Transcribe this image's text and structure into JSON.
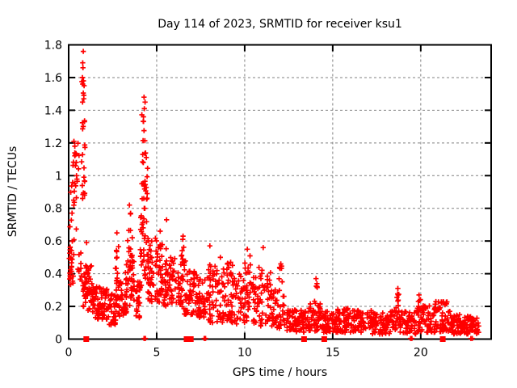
{
  "title": "Day 114 of 2023, SRMTID for receiver ksu1",
  "x_axis": {
    "label": "GPS time / hours",
    "min": 0,
    "max": 24,
    "ticks": [
      {
        "value": 0,
        "label": "0"
      },
      {
        "value": 5,
        "label": "5"
      },
      {
        "value": 10,
        "label": "10"
      },
      {
        "value": 15,
        "label": "15"
      },
      {
        "value": 20,
        "label": "20"
      }
    ],
    "gridlines": [
      5,
      10,
      15,
      20
    ]
  },
  "y_axis": {
    "label": "SRMTID / TECUs",
    "min": 0,
    "max": 1.8,
    "ticks": [
      {
        "value": 0,
        "label": "0"
      },
      {
        "value": 0.2,
        "label": "0.2"
      },
      {
        "value": 0.4,
        "label": "0.4"
      },
      {
        "value": 0.6,
        "label": "0.6"
      },
      {
        "value": 0.8,
        "label": "0.8"
      },
      {
        "value": 1,
        "label": "1"
      },
      {
        "value": 1.2,
        "label": "1.2"
      },
      {
        "value": 1.4,
        "label": "1.4"
      },
      {
        "value": 1.6,
        "label": "1.6"
      },
      {
        "value": 1.8,
        "label": "1.8"
      }
    ],
    "gridlines": [
      0.2,
      0.4,
      0.6,
      0.8,
      1.0,
      1.2,
      1.4,
      1.6
    ]
  },
  "colors": {
    "marker": "#ff0000",
    "grid": "#808080",
    "axis": "#000000",
    "text": "#000000",
    "background": "#ffffff"
  },
  "chart_data": {
    "type": "scatter",
    "title": "Day 114 of 2023, SRMTID for receiver ksu1",
    "xlabel": "GPS time / hours",
    "ylabel": "SRMTID / TECUs",
    "xlim": [
      0,
      24
    ],
    "ylim": [
      0,
      1.8
    ],
    "grid": "dashed",
    "legend": "none",
    "marker": "plus",
    "marker_color": "#ff0000",
    "seed": 1337,
    "bands_format": "[x_start_hours, x_end_hours, y_min_TECUs, y_max_TECUs, point_count]",
    "bands": [
      [
        0.02,
        0.35,
        0.33,
        0.62,
        30
      ],
      [
        0.05,
        0.5,
        0.62,
        1.0,
        12
      ],
      [
        0.2,
        0.6,
        0.95,
        1.22,
        16
      ],
      [
        0.45,
        0.8,
        0.33,
        0.55,
        10
      ],
      [
        0.72,
        0.95,
        0.85,
        1.25,
        14
      ],
      [
        0.74,
        0.92,
        1.28,
        1.62,
        8
      ],
      [
        0.8,
        1.35,
        0.17,
        0.45,
        55
      ],
      [
        1.35,
        2.3,
        0.12,
        0.32,
        75
      ],
      [
        2.3,
        2.7,
        0.08,
        0.28,
        35
      ],
      [
        2.62,
        2.85,
        0.3,
        0.62,
        9
      ],
      [
        2.7,
        3.3,
        0.14,
        0.38,
        45
      ],
      [
        3.2,
        3.75,
        0.2,
        0.52,
        40
      ],
      [
        3.35,
        3.65,
        0.5,
        0.78,
        10
      ],
      [
        3.75,
        4.05,
        0.1,
        0.35,
        25
      ],
      [
        4.05,
        4.55,
        0.3,
        0.75,
        35
      ],
      [
        4.1,
        4.5,
        0.75,
        1.1,
        22
      ],
      [
        4.15,
        4.45,
        1.1,
        1.38,
        10
      ],
      [
        4.5,
        5.1,
        0.22,
        0.62,
        50
      ],
      [
        5.1,
        5.55,
        0.2,
        0.58,
        40
      ],
      [
        5.5,
        6.1,
        0.18,
        0.5,
        45
      ],
      [
        6.1,
        6.65,
        0.15,
        0.48,
        40
      ],
      [
        6.38,
        6.55,
        0.48,
        0.62,
        6
      ],
      [
        6.65,
        7.25,
        0.15,
        0.42,
        45
      ],
      [
        7.25,
        7.95,
        0.12,
        0.4,
        45
      ],
      [
        7.95,
        8.35,
        0.1,
        0.48,
        30
      ],
      [
        8.35,
        8.95,
        0.1,
        0.44,
        35
      ],
      [
        8.95,
        9.35,
        0.1,
        0.47,
        35
      ],
      [
        9.35,
        9.95,
        0.08,
        0.4,
        35
      ],
      [
        9.95,
        10.4,
        0.1,
        0.52,
        35
      ],
      [
        10.4,
        11.1,
        0.08,
        0.44,
        45
      ],
      [
        11.1,
        11.6,
        0.08,
        0.42,
        30
      ],
      [
        11.6,
        12.3,
        0.06,
        0.32,
        40
      ],
      [
        11.95,
        12.15,
        0.32,
        0.46,
        6
      ],
      [
        12.3,
        13.6,
        0.04,
        0.18,
        80
      ],
      [
        13.6,
        14.35,
        0.05,
        0.22,
        50
      ],
      [
        13.95,
        14.15,
        0.22,
        0.36,
        5
      ],
      [
        14.35,
        15.2,
        0.04,
        0.17,
        55
      ],
      [
        15.2,
        16.2,
        0.04,
        0.2,
        65
      ],
      [
        16.2,
        17.2,
        0.04,
        0.18,
        60
      ],
      [
        17.2,
        18.25,
        0.03,
        0.16,
        60
      ],
      [
        18.25,
        18.6,
        0.04,
        0.18,
        18
      ],
      [
        18.6,
        18.8,
        0.05,
        0.28,
        14
      ],
      [
        18.8,
        19.75,
        0.03,
        0.17,
        55
      ],
      [
        19.75,
        20.65,
        0.04,
        0.21,
        55
      ],
      [
        19.85,
        20.02,
        0.17,
        0.26,
        5
      ],
      [
        20.65,
        21.65,
        0.04,
        0.23,
        65
      ],
      [
        21.65,
        22.35,
        0.03,
        0.15,
        45
      ],
      [
        22.35,
        23.3,
        0.03,
        0.14,
        65
      ]
    ],
    "peak_points": [
      [
        0.83,
        1.76
      ],
      [
        0.8,
        1.69
      ],
      [
        0.81,
        1.66
      ],
      [
        0.78,
        1.6
      ],
      [
        0.84,
        1.58
      ],
      [
        0.8,
        1.56
      ],
      [
        0.86,
        1.47
      ],
      [
        0.79,
        1.45
      ],
      [
        0.9,
        1.33
      ],
      [
        0.3,
        1.21
      ],
      [
        0.35,
        1.18
      ],
      [
        1.02,
        0.59
      ],
      [
        4.28,
        1.48
      ],
      [
        4.34,
        1.45
      ],
      [
        4.3,
        1.41
      ],
      [
        4.25,
        1.36
      ],
      [
        2.74,
        0.65
      ],
      [
        3.45,
        0.82
      ],
      [
        3.52,
        0.77
      ],
      [
        5.2,
        0.66
      ],
      [
        5.56,
        0.73
      ],
      [
        6.5,
        0.63
      ],
      [
        8.02,
        0.57
      ],
      [
        8.62,
        0.5
      ],
      [
        9.2,
        0.47
      ],
      [
        10.15,
        0.55
      ],
      [
        11.05,
        0.56
      ],
      [
        12.05,
        0.46
      ],
      [
        14.05,
        0.37
      ],
      [
        18.7,
        0.31
      ],
      [
        18.72,
        0.27
      ],
      [
        19.9,
        0.27
      ]
    ],
    "baseline_squares": [
      1.0,
      6.7,
      6.78,
      6.86,
      6.94,
      13.37,
      14.52,
      21.25
    ],
    "baseline_near_zero_marks": [
      4.28,
      4.36,
      7.7,
      7.78,
      19.42,
      19.5,
      22.85,
      22.93
    ]
  }
}
